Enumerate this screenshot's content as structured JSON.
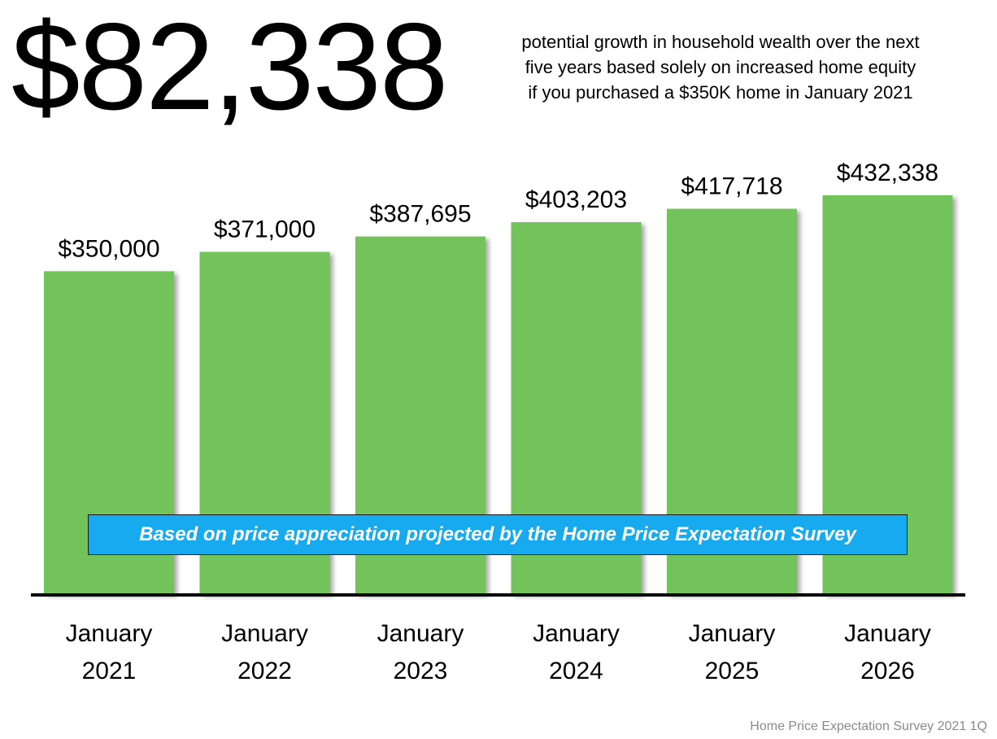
{
  "headline": {
    "value": "$82,338",
    "description_lines": [
      "potential growth in household wealth over the next",
      "five years based solely on increased home equity",
      "if you purchased a $350K home in January 2021"
    ]
  },
  "banner": {
    "text": "Based on price appreciation projected by the Home Price Expectation Survey"
  },
  "source": {
    "text": "Home Price Expectation Survey 2021 1Q"
  },
  "colors": {
    "bar": "#72c35a",
    "bar_shadow": "#bfbfbf",
    "banner": "#18aaef",
    "axis": "#000000"
  },
  "chart_data": {
    "type": "bar",
    "title": "",
    "xlabel": "",
    "ylabel": "",
    "categories": [
      [
        "January",
        "2021"
      ],
      [
        "January",
        "2022"
      ],
      [
        "January",
        "2023"
      ],
      [
        "January",
        "2024"
      ],
      [
        "January",
        "2025"
      ],
      [
        "January",
        "2026"
      ]
    ],
    "values": [
      350000,
      371000,
      387695,
      403203,
      417718,
      432338
    ],
    "data_labels": [
      "$350,000",
      "$371,000",
      "$387,695",
      "$403,203",
      "$417,718",
      "$432,338"
    ],
    "ylim": [
      0,
      432338
    ],
    "grid": false,
    "legend": "none"
  }
}
